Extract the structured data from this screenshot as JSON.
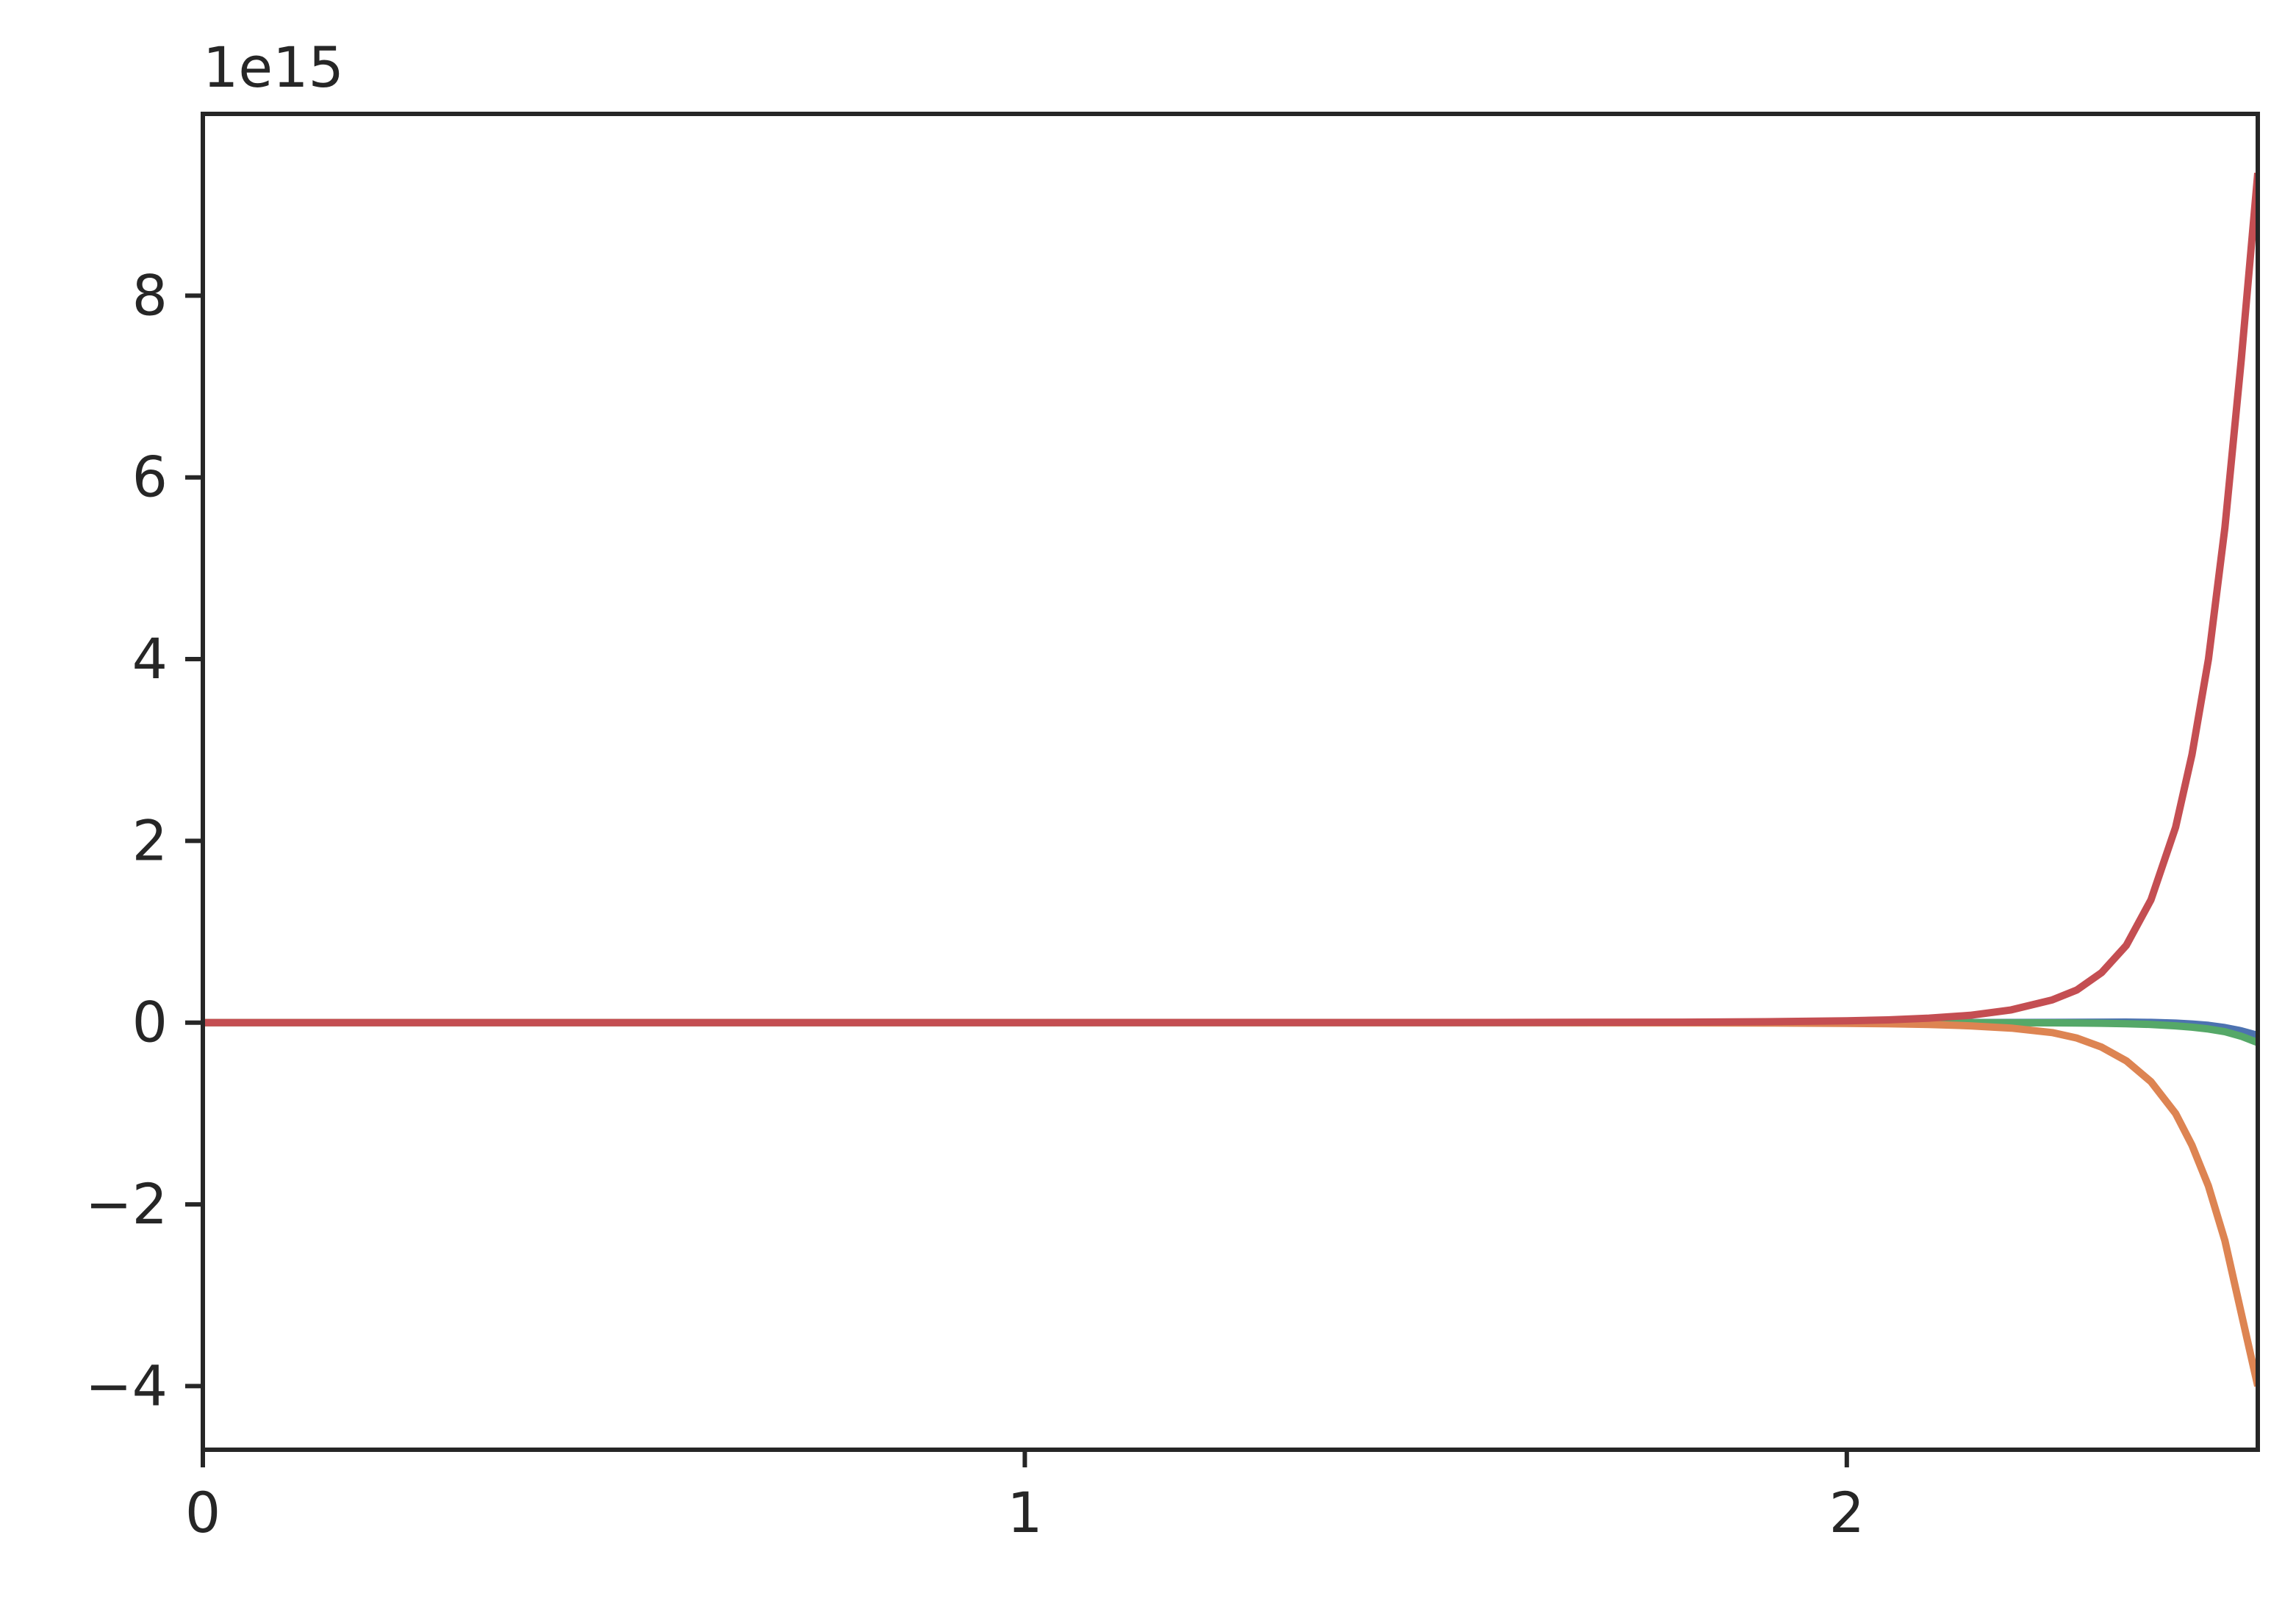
{
  "chart_data": {
    "type": "line",
    "title": "",
    "xlabel": "",
    "ylabel": "",
    "offset_label": "1e15",
    "xlim": [
      0,
      2.5
    ],
    "ylim": [
      -4.7,
      10.0
    ],
    "x_ticks": [
      {
        "value": 0,
        "label": "0"
      },
      {
        "value": 1,
        "label": "1"
      },
      {
        "value": 2,
        "label": "2"
      }
    ],
    "y_ticks": [
      {
        "value": -4,
        "label": "−4"
      },
      {
        "value": -2,
        "label": "−2"
      },
      {
        "value": 0,
        "label": "0"
      },
      {
        "value": 2,
        "label": "2"
      },
      {
        "value": 4,
        "label": "4"
      },
      {
        "value": 6,
        "label": "6"
      },
      {
        "value": 8,
        "label": "8"
      }
    ],
    "grid": false,
    "legend": "none",
    "x": [
      0,
      1.0,
      1.5,
      1.8,
      1.9,
      2.0,
      2.05,
      2.1,
      2.15,
      2.2,
      2.25,
      2.28,
      2.31,
      2.34,
      2.37,
      2.4,
      2.42,
      2.44,
      2.46,
      2.48,
      2.5
    ],
    "series": [
      {
        "color": "#4c72b0",
        "values": [
          0,
          0,
          0,
          0,
          0,
          0,
          0,
          0,
          0.001,
          0.002,
          0.003,
          0.004,
          0.005,
          0.006,
          0.003,
          -0.005,
          -0.015,
          -0.03,
          -0.055,
          -0.09,
          -0.14
        ]
      },
      {
        "color": "#55a868",
        "values": [
          0,
          0,
          0,
          0,
          0,
          0,
          0,
          0,
          0,
          -0.001,
          -0.002,
          -0.004,
          -0.007,
          -0.012,
          -0.02,
          -0.035,
          -0.05,
          -0.07,
          -0.1,
          -0.15,
          -0.22
        ]
      },
      {
        "color": "#dd8452",
        "values": [
          0,
          0,
          0,
          -0.002,
          -0.004,
          -0.008,
          -0.012,
          -0.02,
          -0.035,
          -0.06,
          -0.11,
          -0.17,
          -0.27,
          -0.42,
          -0.65,
          -1.0,
          -1.35,
          -1.8,
          -2.4,
          -3.2,
          -4.0
        ]
      },
      {
        "color": "#c44e52",
        "values": [
          0,
          0,
          0.001,
          0.005,
          0.01,
          0.02,
          0.03,
          0.05,
          0.08,
          0.14,
          0.25,
          0.36,
          0.55,
          0.85,
          1.35,
          2.15,
          2.95,
          4.0,
          5.45,
          7.3,
          9.35
        ]
      }
    ]
  }
}
